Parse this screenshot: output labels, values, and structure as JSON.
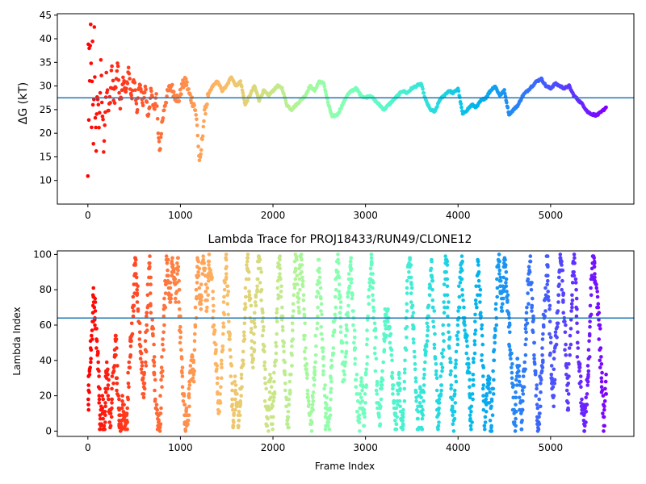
{
  "chart_data": [
    {
      "type": "scatter",
      "title": "",
      "xlabel": "",
      "ylabel": "ΔG (kT)",
      "xlim": [
        -330,
        5900
      ],
      "ylim": [
        5,
        45.3
      ],
      "xticks": [
        0,
        1000,
        2000,
        3000,
        4000,
        5000
      ],
      "yticks": [
        10,
        15,
        20,
        25,
        30,
        35,
        40,
        45
      ],
      "x_tick_labels": [
        "0",
        "1000",
        "2000",
        "3000",
        "4000",
        "5000"
      ],
      "y_tick_labels": [
        "10",
        "15",
        "20",
        "25",
        "30",
        "35",
        "40",
        "45"
      ],
      "hline": 27.5,
      "hline_color": "#1f77b4",
      "colormap": "rainbow (red at frame 0, violet at frame ~5600)",
      "grid": false,
      "trace": [
        [
          0,
          10.0
        ],
        [
          5,
          40.0
        ],
        [
          10,
          22.0
        ],
        [
          15,
          35.0
        ],
        [
          20,
          30.0
        ],
        [
          30,
          45.0
        ],
        [
          40,
          20.0
        ],
        [
          50,
          38.0
        ],
        [
          60,
          16.0
        ],
        [
          70,
          42.0
        ],
        [
          80,
          25.0
        ],
        [
          90,
          14.0
        ],
        [
          100,
          30.0
        ],
        [
          120,
          22.0
        ],
        [
          140,
          33.0
        ],
        [
          170,
          18.0
        ],
        [
          200,
          30.0
        ],
        [
          230,
          24.0
        ],
        [
          260,
          33.0
        ],
        [
          290,
          27.0
        ],
        [
          320,
          35.0
        ],
        [
          350,
          26.0
        ],
        [
          380,
          32.0
        ],
        [
          410,
          28.0
        ],
        [
          440,
          34.0
        ],
        [
          470,
          27.0
        ],
        [
          500,
          32.0
        ],
        [
          530,
          24.0
        ],
        [
          560,
          31.0
        ],
        [
          590,
          26.0
        ],
        [
          620,
          30.0
        ],
        [
          650,
          23.0
        ],
        [
          680,
          29.0
        ],
        [
          710,
          25.0
        ],
        [
          740,
          28.0
        ],
        [
          760,
          20.0
        ],
        [
          775,
          16.0
        ],
        [
          800,
          22.0
        ],
        [
          830,
          26.0
        ],
        [
          870,
          29.0
        ],
        [
          900,
          30.0
        ],
        [
          940,
          28.0
        ],
        [
          980,
          27.0
        ],
        [
          1020,
          30.0
        ],
        [
          1060,
          31.0
        ],
        [
          1100,
          28.0
        ],
        [
          1150,
          26.0
        ],
        [
          1180,
          22.0
        ],
        [
          1200,
          15.0
        ],
        [
          1215,
          14.0
        ],
        [
          1230,
          18.0
        ],
        [
          1260,
          24.0
        ],
        [
          1300,
          28.0
        ],
        [
          1350,
          30.0
        ],
        [
          1400,
          31.0
        ],
        [
          1450,
          29.0
        ],
        [
          1500,
          30.0
        ],
        [
          1550,
          32.0
        ],
        [
          1600,
          30.0
        ],
        [
          1650,
          31.0
        ],
        [
          1700,
          26.0
        ],
        [
          1750,
          28.0
        ],
        [
          1800,
          30.0
        ],
        [
          1850,
          27.0
        ],
        [
          1900,
          29.0
        ],
        [
          1950,
          28.0
        ],
        [
          2000,
          29.0
        ],
        [
          2050,
          30.0
        ],
        [
          2100,
          29.5
        ],
        [
          2150,
          26.0
        ],
        [
          2200,
          25.0
        ],
        [
          2250,
          26.0
        ],
        [
          2300,
          27.0
        ],
        [
          2350,
          28.0
        ],
        [
          2400,
          30.0
        ],
        [
          2450,
          29.0
        ],
        [
          2500,
          31.0
        ],
        [
          2550,
          30.5
        ],
        [
          2600,
          26.0
        ],
        [
          2640,
          23.5
        ],
        [
          2700,
          24.0
        ],
        [
          2750,
          26.0
        ],
        [
          2800,
          28.0
        ],
        [
          2850,
          29.0
        ],
        [
          2900,
          29.5
        ],
        [
          2950,
          28.0
        ],
        [
          3000,
          27.5
        ],
        [
          3050,
          28.0
        ],
        [
          3100,
          27.0
        ],
        [
          3150,
          26.0
        ],
        [
          3200,
          25.0
        ],
        [
          3250,
          26.0
        ],
        [
          3300,
          27.0
        ],
        [
          3350,
          28.0
        ],
        [
          3400,
          29.0
        ],
        [
          3450,
          28.5
        ],
        [
          3500,
          29.5
        ],
        [
          3550,
          30.0
        ],
        [
          3600,
          30.5
        ],
        [
          3650,
          27.0
        ],
        [
          3700,
          25.0
        ],
        [
          3750,
          24.5
        ],
        [
          3800,
          27.0
        ],
        [
          3850,
          28.0
        ],
        [
          3900,
          29.0
        ],
        [
          3950,
          28.5
        ],
        [
          4000,
          29.5
        ],
        [
          4050,
          24.0
        ],
        [
          4100,
          25.0
        ],
        [
          4150,
          26.0
        ],
        [
          4200,
          25.5
        ],
        [
          4250,
          27.0
        ],
        [
          4300,
          27.5
        ],
        [
          4350,
          29.0
        ],
        [
          4400,
          30.0
        ],
        [
          4450,
          28.0
        ],
        [
          4500,
          29.0
        ],
        [
          4550,
          24.0
        ],
        [
          4600,
          25.0
        ],
        [
          4650,
          26.0
        ],
        [
          4700,
          28.0
        ],
        [
          4750,
          29.0
        ],
        [
          4800,
          30.0
        ],
        [
          4850,
          31.0
        ],
        [
          4900,
          31.5
        ],
        [
          4950,
          30.0
        ],
        [
          5000,
          29.5
        ],
        [
          5050,
          30.5
        ],
        [
          5100,
          30.0
        ],
        [
          5150,
          29.5
        ],
        [
          5200,
          30.0
        ],
        [
          5250,
          28.0
        ],
        [
          5300,
          27.0
        ],
        [
          5350,
          26.0
        ],
        [
          5400,
          24.5
        ],
        [
          5450,
          24.0
        ],
        [
          5500,
          23.8
        ],
        [
          5550,
          24.5
        ],
        [
          5600,
          25.5
        ]
      ]
    },
    {
      "type": "scatter",
      "title": "Lambda Trace for PROJ18433/RUN49/CLONE12",
      "xlabel": "Frame Index",
      "ylabel": "Lambda Index",
      "xlim": [
        -330,
        5900
      ],
      "ylim": [
        -3,
        102
      ],
      "xticks": [
        0,
        1000,
        2000,
        3000,
        4000,
        5000
      ],
      "yticks": [
        0,
        20,
        40,
        60,
        80,
        100
      ],
      "x_tick_labels": [
        "0",
        "1000",
        "2000",
        "3000",
        "4000",
        "5000"
      ],
      "y_tick_labels": [
        "0",
        "20",
        "40",
        "60",
        "80",
        "100"
      ],
      "hline": 64,
      "hline_color": "#1f77b4",
      "colormap": "rainbow (red at frame 0, violet at frame ~5600)",
      "grid": false,
      "point_range": [
        0,
        100
      ],
      "frame_range": [
        0,
        5600
      ]
    }
  ]
}
